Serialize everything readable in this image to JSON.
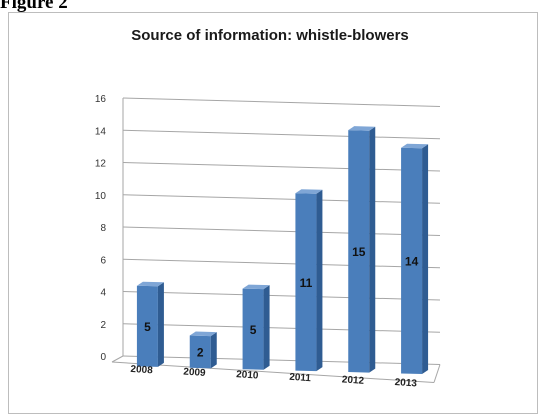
{
  "figure_label": "Figure 2",
  "chart_data": {
    "type": "bar",
    "title": "Source of information: whistle-blowers",
    "categories": [
      "2008",
      "2009",
      "2010",
      "2011",
      "2012",
      "2013"
    ],
    "values": [
      5,
      2,
      5,
      11,
      15,
      14
    ],
    "data_labels": [
      "5",
      "2",
      "5",
      "11",
      "15",
      "14"
    ],
    "xlabel": "",
    "ylabel": "",
    "ylim": [
      0,
      16
    ],
    "yticks": [
      0,
      2,
      4,
      6,
      8,
      10,
      12,
      14,
      16
    ],
    "grid": true,
    "legend": "none",
    "colors": {
      "bar_front": "#4a7ebb",
      "bar_side": "#2f5c92",
      "bar_top": "#7fa6d6",
      "grid": "#a6a6a6"
    }
  }
}
